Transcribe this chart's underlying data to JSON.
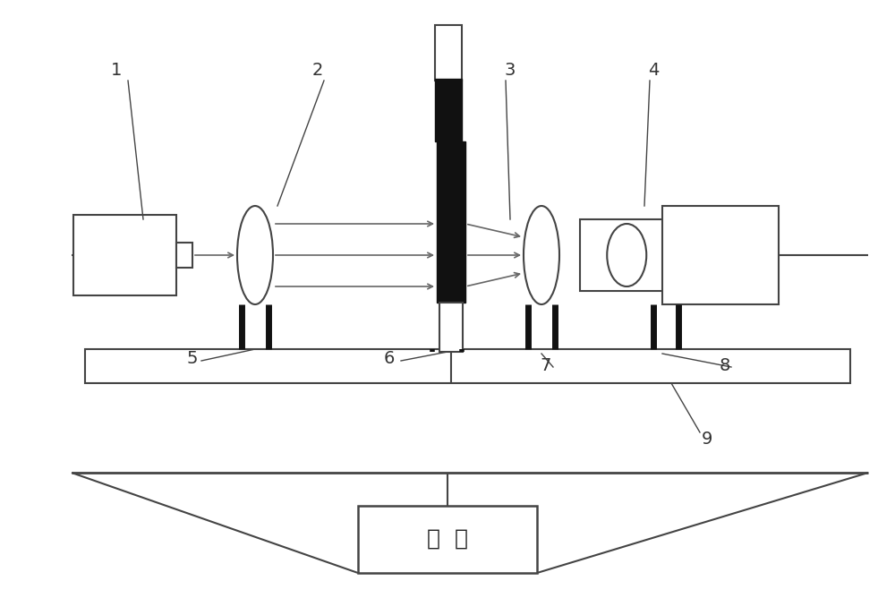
{
  "bg_color": "#f0f0ec",
  "border_color": "#444444",
  "line_color": "#666666",
  "dark_color": "#111111",
  "label_color": "#333333",
  "fig_width": 10.0,
  "fig_height": 6.68,
  "computer_text": "电  脑"
}
